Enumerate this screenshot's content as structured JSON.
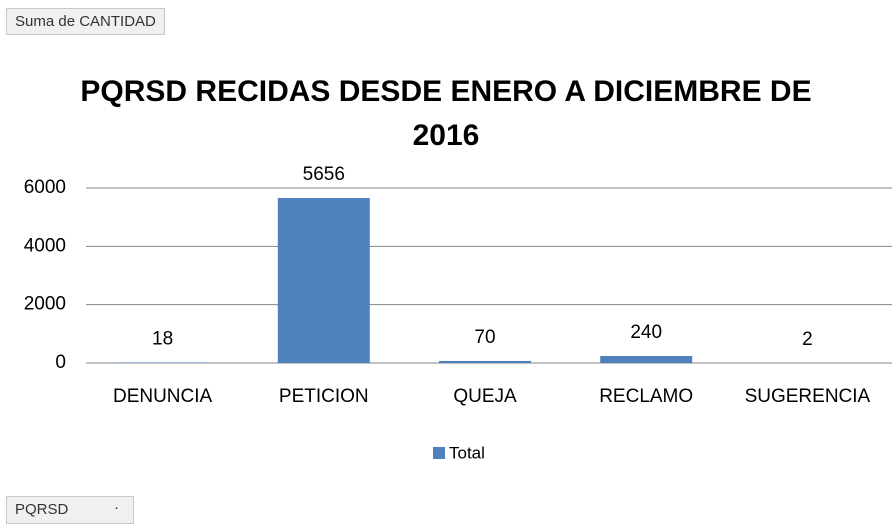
{
  "pivot_buttons": {
    "value_field": "Suma de CANTIDAD",
    "axis_field": "PQRSD"
  },
  "chart_data": {
    "type": "bar",
    "title": "PQRSD RECIDAS DESDE ENERO A DICIEMBRE DE 2016",
    "categories": [
      "DENUNCIA",
      "PETICION",
      "QUEJA",
      "RECLAMO",
      "SUGERENCIA"
    ],
    "series": [
      {
        "name": "Total",
        "color": "#4f81bd",
        "values": [
          18,
          5656,
          70,
          240,
          2
        ]
      }
    ],
    "ylim": [
      0,
      6000
    ],
    "yticks": [
      0,
      2000,
      4000,
      6000
    ],
    "grid": true,
    "legend": "bottom"
  }
}
